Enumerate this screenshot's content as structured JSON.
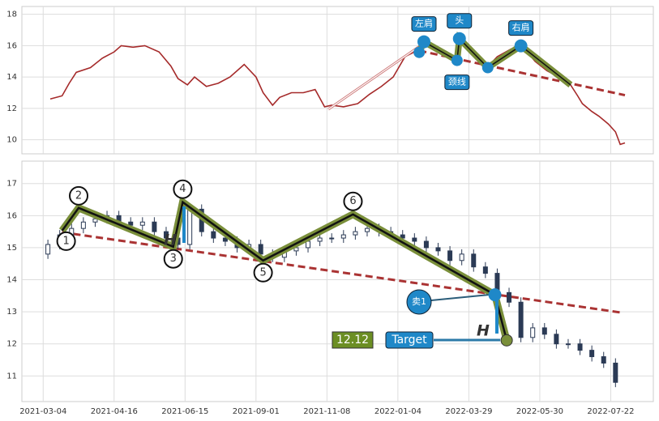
{
  "chart_data": [
    {
      "type": "line",
      "color": "#a52a2a",
      "grid": true,
      "xlim": [
        -9,
        258
      ],
      "ylim": [
        9.1,
        18.5
      ],
      "yticks": [
        10,
        12,
        14,
        16,
        18
      ],
      "x": [
        3,
        8,
        11,
        14,
        20,
        25,
        30,
        33,
        38,
        43,
        49,
        54,
        57,
        61,
        64,
        69,
        74,
        79,
        85,
        90,
        93,
        97,
        100,
        105,
        110,
        115,
        119,
        122,
        127,
        133,
        138,
        143,
        148,
        153,
        157,
        160,
        163,
        168,
        174,
        177,
        180,
        184,
        187,
        192,
        198,
        203,
        208,
        213,
        218,
        223,
        226,
        228,
        232,
        235,
        239,
        242,
        244,
        246
      ],
      "values": [
        12.6,
        12.8,
        13.6,
        14.3,
        14.6,
        15.2,
        15.6,
        16.0,
        15.9,
        16.0,
        15.6,
        14.7,
        13.9,
        13.5,
        14.0,
        13.4,
        13.6,
        14.0,
        14.8,
        14.0,
        13.0,
        12.2,
        12.7,
        13.0,
        13.0,
        13.2,
        12.1,
        12.2,
        12.1,
        12.3,
        12.9,
        13.4,
        14.0,
        15.3,
        15.6,
        16.2,
        15.9,
        15.8,
        15.2,
        16.3,
        15.6,
        15.0,
        14.5,
        15.3,
        15.8,
        15.9,
        15.0,
        14.4,
        14.0,
        13.5,
        12.8,
        12.3,
        11.8,
        11.5,
        11.0,
        10.5,
        9.7,
        9.8
      ],
      "pattern": {
        "x": [
          159,
          161,
          175,
          176,
          188,
          202,
          223
        ],
        "values": [
          15.57,
          16.25,
          15.06,
          16.45,
          14.6,
          15.99,
          13.5
        ]
      },
      "neckline": {
        "x": [
          159,
          246
        ],
        "values": [
          15.68,
          12.84
        ]
      },
      "labels": [
        "左肩",
        "头",
        "颈线",
        "右肩"
      ]
    },
    {
      "type": "candlestick",
      "grid": true,
      "xlim": [
        -9,
        258
      ],
      "ylim": [
        10.2,
        17.7
      ],
      "yticks": [
        11,
        12,
        13,
        14,
        15,
        16,
        17
      ],
      "xticks": [
        {
          "value": 0,
          "label": "2021-03-04"
        },
        {
          "value": 30,
          "label": "2021-04-16"
        },
        {
          "value": 60,
          "label": "2021-06-15"
        },
        {
          "value": 90,
          "label": "2021-09-01"
        },
        {
          "value": 120,
          "label": "2021-11-08"
        },
        {
          "value": 150,
          "label": "2022-01-04"
        },
        {
          "value": 180,
          "label": "2022-03-29"
        },
        {
          "value": 210,
          "label": "2022-05-30"
        },
        {
          "value": 240,
          "label": "2022-07-22"
        }
      ],
      "x": [
        2,
        7,
        12,
        17,
        22,
        27,
        32,
        37,
        42,
        47,
        52,
        57,
        62,
        67,
        72,
        77,
        82,
        87,
        92,
        97,
        102,
        107,
        112,
        117,
        122,
        127,
        132,
        137,
        142,
        147,
        152,
        157,
        162,
        167,
        172,
        177,
        182,
        187,
        192,
        197,
        202,
        207,
        212,
        217,
        222,
        227,
        232,
        237,
        242
      ],
      "open": [
        14.8,
        15.1,
        15.4,
        15.6,
        15.8,
        15.9,
        16.0,
        15.8,
        15.7,
        15.8,
        15.5,
        15.3,
        15.1,
        16.2,
        15.5,
        15.3,
        15.2,
        15.0,
        15.1,
        14.8,
        14.7,
        14.9,
        15.0,
        15.2,
        15.3,
        15.3,
        15.4,
        15.5,
        15.6,
        15.5,
        15.4,
        15.3,
        15.2,
        15.0,
        14.9,
        14.6,
        14.8,
        14.4,
        14.2,
        13.6,
        13.3,
        12.2,
        12.5,
        12.3,
        12.0,
        12.0,
        11.8,
        11.6,
        11.4
      ],
      "close": [
        15.1,
        15.4,
        15.6,
        15.8,
        15.9,
        16.0,
        15.8,
        15.7,
        15.8,
        15.5,
        15.3,
        15.1,
        16.2,
        15.5,
        15.3,
        15.2,
        15.0,
        15.1,
        14.8,
        14.7,
        14.9,
        15.0,
        15.2,
        15.3,
        15.3,
        15.4,
        15.5,
        15.6,
        15.5,
        15.4,
        15.3,
        15.2,
        15.0,
        14.9,
        14.6,
        14.8,
        14.4,
        14.2,
        13.6,
        13.3,
        12.2,
        12.5,
        12.3,
        12.0,
        12.0,
        11.8,
        11.6,
        11.4,
        10.8
      ],
      "high": [
        15.25,
        15.55,
        15.75,
        15.95,
        16.05,
        16.15,
        16.15,
        15.95,
        15.95,
        15.95,
        15.65,
        15.45,
        16.35,
        16.35,
        15.65,
        15.45,
        15.35,
        15.25,
        15.25,
        14.95,
        15.05,
        15.15,
        15.35,
        15.45,
        15.45,
        15.55,
        15.65,
        15.75,
        15.75,
        15.65,
        15.55,
        15.45,
        15.35,
        15.15,
        15.05,
        14.95,
        14.95,
        14.55,
        14.35,
        13.75,
        13.45,
        12.65,
        12.65,
        12.45,
        12.15,
        12.15,
        11.95,
        11.75,
        11.55
      ],
      "low": [
        14.65,
        14.95,
        15.25,
        15.45,
        15.65,
        15.75,
        15.65,
        15.55,
        15.55,
        15.35,
        15.15,
        14.95,
        14.95,
        15.35,
        15.15,
        15.05,
        14.85,
        14.85,
        14.65,
        14.55,
        14.55,
        14.75,
        14.85,
        15.05,
        15.15,
        15.15,
        15.25,
        15.35,
        15.35,
        15.25,
        15.15,
        15.05,
        14.85,
        14.75,
        14.45,
        14.45,
        14.25,
        14.05,
        13.45,
        13.15,
        12.05,
        12.05,
        12.15,
        11.85,
        11.85,
        11.65,
        11.45,
        11.25,
        10.65
      ],
      "pattern": {
        "x": [
          8,
          15,
          55,
          59,
          93,
          131,
          191,
          196
        ],
        "values": [
          15.53,
          16.24,
          15.03,
          16.42,
          14.6,
          16.04,
          13.53,
          12.11
        ],
        "labels": [
          "1",
          "2",
          "3",
          "4",
          "5",
          "6"
        ]
      },
      "trendline": {
        "x": [
          8,
          245
        ],
        "values": [
          15.48,
          12.97
        ]
      },
      "sell_label": "卖1",
      "target_label": "Target",
      "target_value": 12.12,
      "h_label": "H"
    }
  ]
}
